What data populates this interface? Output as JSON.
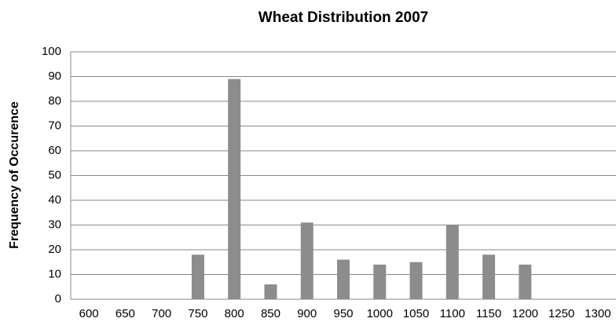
{
  "chart_data": {
    "type": "bar",
    "title": "Wheat Distribution 2007",
    "y_label": "Frequency of Occurence",
    "categories": [
      "600",
      "650",
      "700",
      "750",
      "800",
      "850",
      "900",
      "950",
      "1000",
      "1050",
      "1100",
      "1150",
      "1200",
      "1250",
      "1300"
    ],
    "values": [
      0,
      0,
      0,
      18,
      89,
      6,
      31,
      16,
      14,
      15,
      30,
      18,
      14,
      0,
      0
    ],
    "color": "#8c8c8c",
    "ylim": [
      0,
      100
    ],
    "yticks": [
      0,
      10,
      20,
      30,
      40,
      50,
      60,
      70,
      80,
      90,
      100
    ],
    "grid": true
  }
}
